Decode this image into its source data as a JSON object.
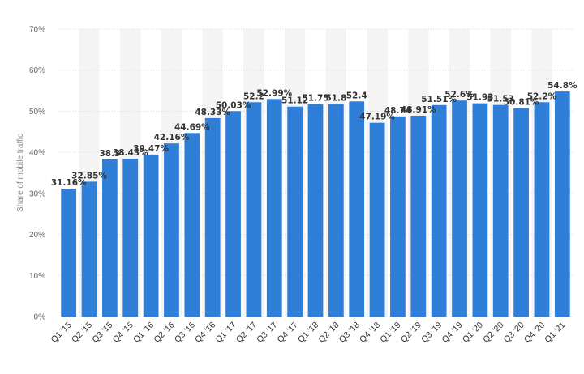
{
  "chart_data": {
    "type": "bar",
    "ylabel": "Share of mobile traffic",
    "xlabel": "",
    "ylim": [
      0,
      70
    ],
    "yticks": [
      0,
      10,
      20,
      30,
      40,
      50,
      60,
      70
    ],
    "ytick_labels": [
      "0%",
      "10%",
      "20%",
      "30%",
      "40%",
      "50%",
      "60%",
      "70%"
    ],
    "grid": true,
    "categories": [
      "Q1 '15",
      "Q2 '15",
      "Q3 '15",
      "Q4 '15",
      "Q1 '16",
      "Q2 '16",
      "Q3 '16",
      "Q4 '16",
      "Q1 '17",
      "Q2 '17",
      "Q3 '17",
      "Q4 '17",
      "Q1 '18",
      "Q2 '18",
      "Q3 '18",
      "Q4 '18",
      "Q1 '19",
      "Q2 '19",
      "Q3 '19",
      "Q4 '19",
      "Q1 '20",
      "Q2 '20",
      "Q3 '20",
      "Q4 '20",
      "Q1 '21"
    ],
    "values": [
      31.16,
      32.85,
      38.3,
      38.43,
      39.47,
      42.16,
      44.69,
      48.33,
      50.03,
      52.2,
      52.99,
      51.12,
      51.75,
      51.8,
      52.4,
      47.19,
      48.74,
      48.91,
      51.51,
      52.6,
      51.93,
      51.53,
      50.81,
      52.2,
      54.8
    ],
    "data_labels": [
      "31.16%",
      "32.85%",
      "38.3",
      "38.43%",
      "39.47%",
      "42.16%",
      "44.69%",
      "48.33%",
      "50.03%",
      "52.2",
      "52.99%",
      "51.12",
      "51.75",
      "51.8",
      "52.4",
      "47.19%",
      "48.74",
      "48.91%",
      "51.51%",
      "52.6%",
      "51.93",
      "51.53",
      "50.81%",
      "52.2%",
      "54.8%"
    ],
    "colors": {
      "bar": "#2f7ed8",
      "grid": "#d8d8d8",
      "band": "#f4f4f4",
      "axis": "#cccccc"
    }
  }
}
